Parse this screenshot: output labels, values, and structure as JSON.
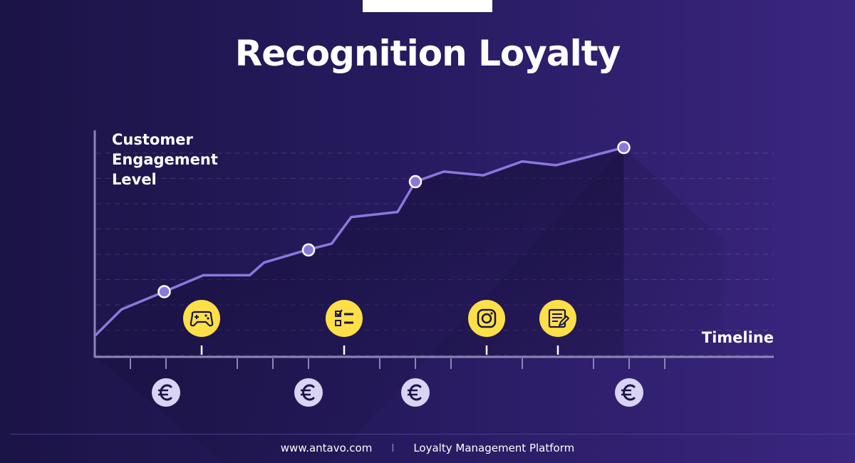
{
  "title": "Recognition Loyalty",
  "footer": {
    "website": "www.antavo.com",
    "separator": "I",
    "tagline": "Loyalty Management Platform"
  },
  "colors": {
    "line": "#8b78de",
    "marker": "#8b78de",
    "event_icon_bg": "#fde047",
    "euro_icon_bg": "#d9d4f3",
    "axis": "#8b86b5"
  },
  "chart_data": {
    "type": "line",
    "title": "Recognition Loyalty",
    "xlabel": "Timeline",
    "ylabel": "Customer\nEngagement\nLevel",
    "x_range": [
      0,
      19
    ],
    "y_range": [
      0,
      9
    ],
    "grid": "dashed horizontal",
    "series": [
      {
        "points": [
          [
            0,
            0.8
          ],
          [
            0.75,
            1.85
          ],
          [
            1.95,
            2.55
          ],
          [
            3.05,
            3.2
          ],
          [
            4.35,
            3.2
          ],
          [
            4.75,
            3.7
          ],
          [
            5.95,
            4.2
          ],
          [
            6.65,
            4.45
          ],
          [
            7.2,
            5.5
          ],
          [
            8.5,
            5.7
          ],
          [
            9.0,
            6.9
          ],
          [
            9.8,
            7.3
          ],
          [
            10.9,
            7.15
          ],
          [
            12.0,
            7.7
          ],
          [
            12.95,
            7.55
          ],
          [
            14.85,
            8.25
          ]
        ],
        "markers": [
          [
            1.95,
            2.55
          ],
          [
            6.0,
            4.2
          ],
          [
            9.0,
            6.9
          ],
          [
            14.85,
            8.25
          ]
        ]
      }
    ],
    "events": [
      {
        "x": 3,
        "icon": "gamepad-icon"
      },
      {
        "x": 7,
        "icon": "checklist-icon"
      },
      {
        "x": 11,
        "icon": "instagram-icon"
      },
      {
        "x": 13,
        "icon": "form-icon"
      }
    ],
    "rewards": [
      {
        "x": 2,
        "icon": "euro-icon"
      },
      {
        "x": 6,
        "icon": "euro-icon"
      },
      {
        "x": 9,
        "icon": "euro-icon"
      },
      {
        "x": 15,
        "icon": "euro-icon"
      }
    ],
    "x_ticks": [
      1,
      2,
      4,
      5,
      6,
      8,
      9,
      10,
      12,
      14,
      15,
      16
    ]
  }
}
